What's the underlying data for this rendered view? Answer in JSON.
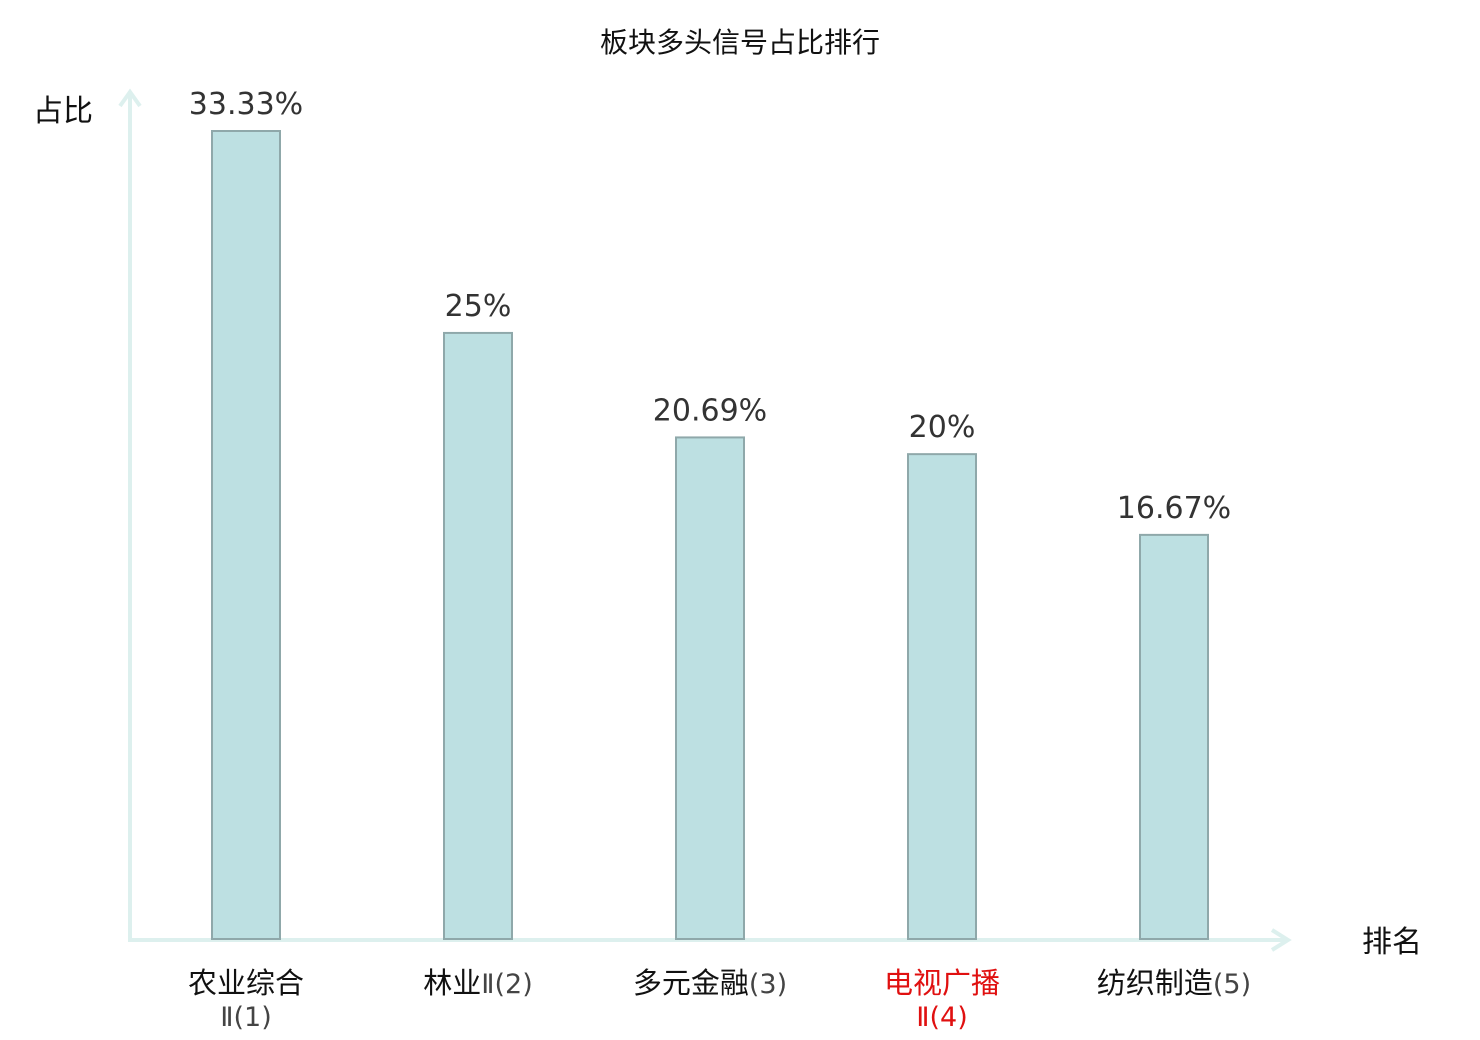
{
  "chart_data": {
    "type": "bar",
    "title": "板块多头信号占比排行",
    "xlabel": "排名",
    "ylabel": "占比",
    "categories": [
      {
        "name": "农业综合",
        "suffix": "Ⅱ(1)",
        "highlight": false
      },
      {
        "name": "林业",
        "suffix": "Ⅱ(2)",
        "highlight": false
      },
      {
        "name": "多元金融",
        "suffix": "(3)",
        "highlight": false
      },
      {
        "name": "电视广播",
        "suffix": "Ⅱ(4)",
        "highlight": true
      },
      {
        "name": "纺织制造",
        "suffix": "(5)",
        "highlight": false
      }
    ],
    "values": [
      33.33,
      25,
      20.69,
      20,
      16.67
    ],
    "value_labels": [
      "33.33%",
      "25%",
      "20.69%",
      "20%",
      "16.67%"
    ],
    "ylim": [
      0,
      35
    ],
    "grid": false,
    "legend": "none"
  },
  "colors": {
    "bar_fill": "#bde0e2",
    "bar_stroke": "#8fa8aa",
    "axis": "#ddf0ee",
    "highlight_text": "#e01010"
  }
}
